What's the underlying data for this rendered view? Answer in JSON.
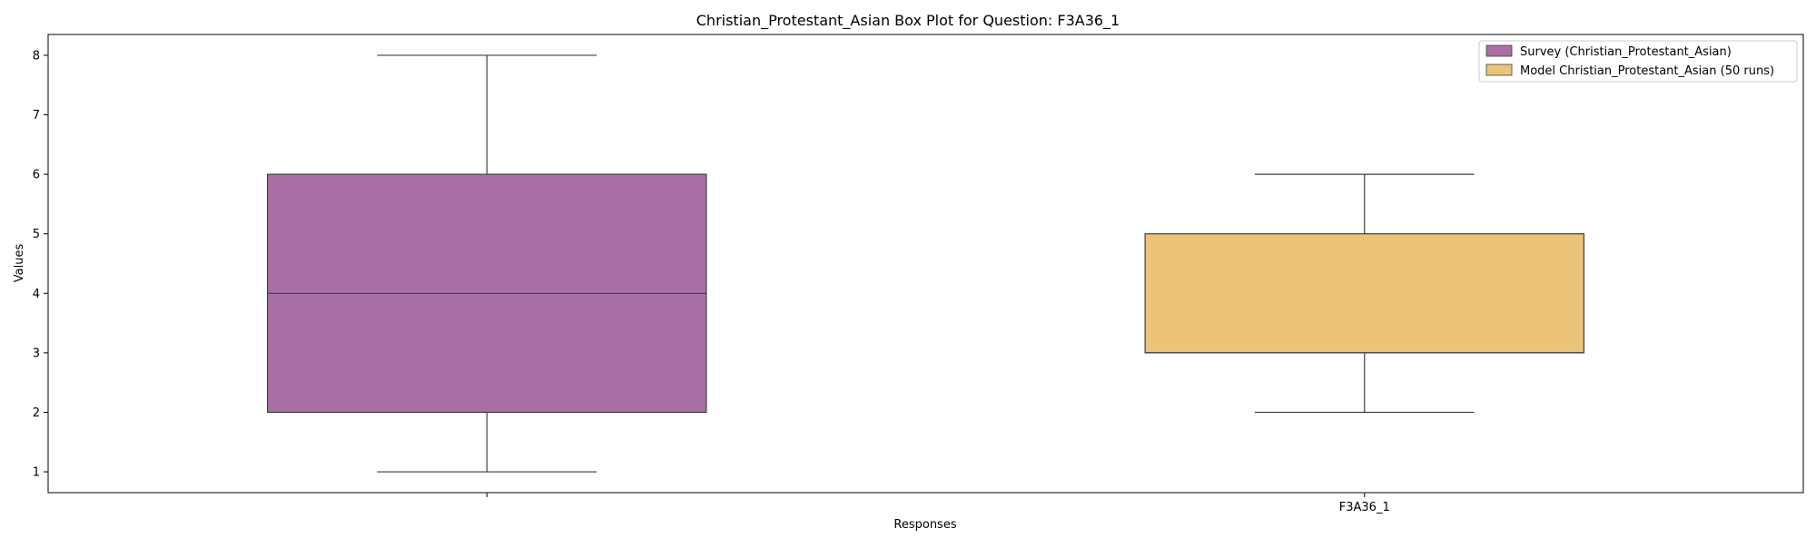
{
  "chart_data": {
    "type": "box",
    "title": "Christian_Protestant_Asian Box Plot for Question: F3A36_1",
    "xlabel": "Responses",
    "ylabel": "Values",
    "ylim": [
      0.65,
      8.35
    ],
    "yticks": [
      1,
      2,
      3,
      4,
      5,
      6,
      7,
      8
    ],
    "xticks": [
      "",
      "F3A36_1"
    ],
    "grid": false,
    "legend_position": "top-right",
    "series": [
      {
        "name": "Survey (Christian_Protestant_Asian)",
        "color": "#a970a8",
        "whisker_low": 1,
        "q1": 2,
        "median": 4,
        "q3": 6,
        "whisker_high": 8
      },
      {
        "name": "Model Christian_Protestant_Asian (50 runs)",
        "color": "#ebc47a",
        "whisker_low": 2,
        "q1": 3,
        "median": 3,
        "q3": 5,
        "whisker_high": 6
      }
    ]
  }
}
